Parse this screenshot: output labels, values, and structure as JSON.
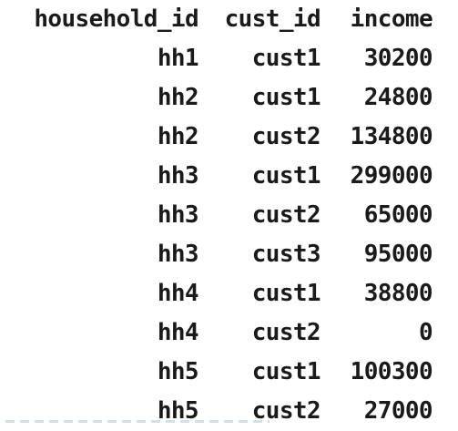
{
  "table": {
    "columns": [
      "household_id",
      "cust_id",
      "income"
    ],
    "rows": [
      {
        "household_id": "hh1",
        "cust_id": "cust1",
        "income": "30200"
      },
      {
        "household_id": "hh2",
        "cust_id": "cust1",
        "income": "24800"
      },
      {
        "household_id": "hh2",
        "cust_id": "cust2",
        "income": "134800"
      },
      {
        "household_id": "hh3",
        "cust_id": "cust1",
        "income": "299000"
      },
      {
        "household_id": "hh3",
        "cust_id": "cust2",
        "income": "65000"
      },
      {
        "household_id": "hh3",
        "cust_id": "cust3",
        "income": "95000"
      },
      {
        "household_id": "hh4",
        "cust_id": "cust1",
        "income": "38800"
      },
      {
        "household_id": "hh4",
        "cust_id": "cust2",
        "income": "0"
      },
      {
        "household_id": "hh5",
        "cust_id": "cust1",
        "income": "100300"
      },
      {
        "household_id": "hh5",
        "cust_id": "cust2",
        "income": "27000"
      }
    ]
  }
}
